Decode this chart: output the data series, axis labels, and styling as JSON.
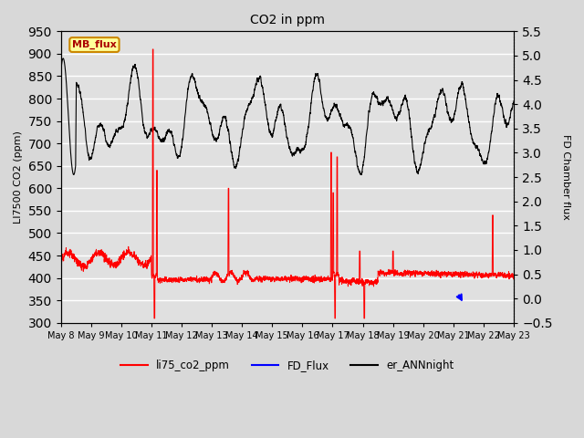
{
  "title": "CO2 in ppm",
  "ylabel_left": "LI7500 CO2 (ppm)",
  "ylabel_right": "FD Chamber flux",
  "ylim_left": [
    300,
    950
  ],
  "ylim_right": [
    -0.5,
    5.5
  ],
  "yticks_left": [
    300,
    350,
    400,
    450,
    500,
    550,
    600,
    650,
    700,
    750,
    800,
    850,
    900,
    950
  ],
  "yticks_right": [
    -0.5,
    0.0,
    0.5,
    1.0,
    1.5,
    2.0,
    2.5,
    3.0,
    3.5,
    4.0,
    4.5,
    5.0,
    5.5
  ],
  "plot_bg_color": "#e0e0e0",
  "grid_color": "white",
  "legend_items": [
    {
      "label": "li75_co2_ppm",
      "color": "red"
    },
    {
      "label": "FD_Flux",
      "color": "blue"
    },
    {
      "label": "er_ANNnight",
      "color": "black"
    }
  ],
  "mb_flux_label": "MB_flux",
  "mb_flux_bg": "#ffff99",
  "mb_flux_border": "#cc8800",
  "xstart_day": 8,
  "xend_day": 23
}
